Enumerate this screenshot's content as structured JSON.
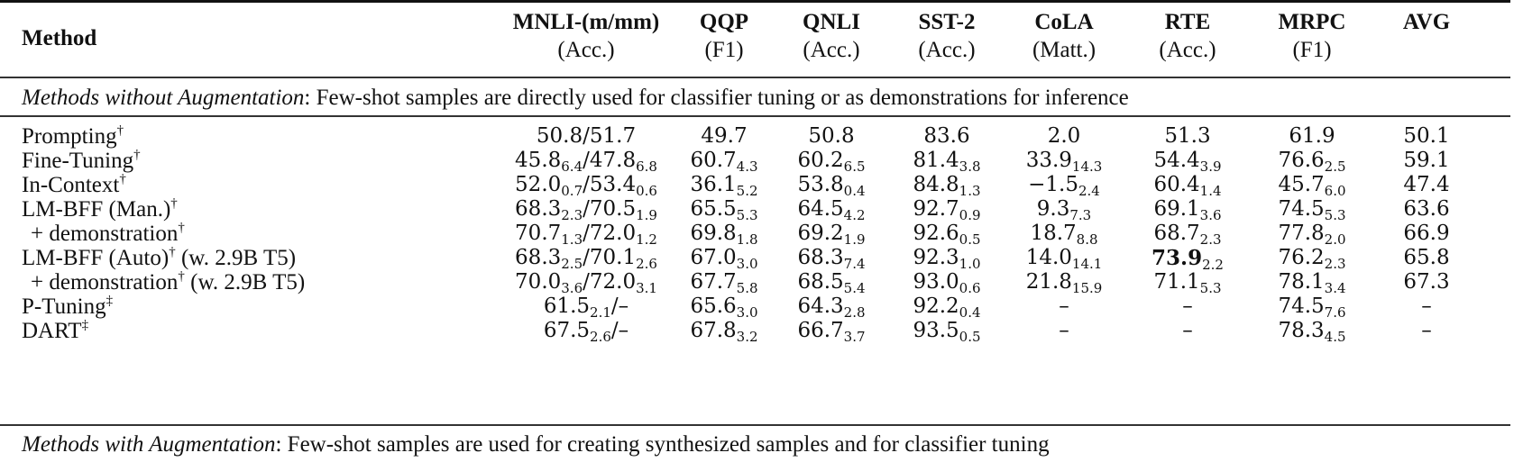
{
  "table": {
    "columns": [
      {
        "key": "method",
        "label": "Method",
        "sub": ""
      },
      {
        "key": "mnli",
        "label": "MNLI-(m/mm)",
        "sub": "(Acc.)"
      },
      {
        "key": "qqp",
        "label": "QQP",
        "sub": "(F1)"
      },
      {
        "key": "qnli",
        "label": "QNLI",
        "sub": "(Acc.)"
      },
      {
        "key": "sst2",
        "label": "SST-2",
        "sub": "(Acc.)"
      },
      {
        "key": "cola",
        "label": "CoLA",
        "sub": "(Matt.)"
      },
      {
        "key": "rte",
        "label": "RTE",
        "sub": "(Acc.)"
      },
      {
        "key": "mrpc",
        "label": "MRPC",
        "sub": "(F1)"
      },
      {
        "key": "avg",
        "label": "AVG",
        "sub": ""
      }
    ],
    "sections": [
      {
        "title_italic": "Methods without Augmentation",
        "title_rest": ": Few-shot samples are directly used for classifier tuning or as demonstrations for inference"
      },
      {
        "title_italic": "Methods with Augmentation",
        "title_rest": ": Few-shot samples are used for creating synthesized samples and for classifier tuning"
      }
    ],
    "rows": [
      {
        "name": "Prompting",
        "mark": "†",
        "suffix": "",
        "indent": false,
        "mnli": "50.8/51.7",
        "qqp": "49.7",
        "qnli": "50.8",
        "sst2": "83.6",
        "cola": "2.0",
        "rte": "51.3",
        "mrpc": "61.9",
        "avg": "50.1"
      },
      {
        "name": "Fine-Tuning",
        "mark": "†",
        "suffix": "",
        "indent": false,
        "mnli": "45.8_{6.4}/47.8_{6.8}",
        "qqp": "60.7_{4.3}",
        "qnli": "60.2_{6.5}",
        "sst2": "81.4_{3.8}",
        "cola": "33.9_{14.3}",
        "rte": "54.4_{3.9}",
        "mrpc": "76.6_{2.5}",
        "avg": "59.1"
      },
      {
        "name": "In-Context",
        "mark": "†",
        "suffix": "",
        "indent": false,
        "mnli": "52.0_{0.7}/53.4_{0.6}",
        "qqp": "36.1_{5.2}",
        "qnli": "53.8_{0.4}",
        "sst2": "84.8_{1.3}",
        "cola": "−1.5_{2.4}",
        "rte": "60.4_{1.4}",
        "mrpc": "45.7_{6.0}",
        "avg": "47.4"
      },
      {
        "name": "LM-BFF (Man.)",
        "mark": "†",
        "suffix": "",
        "indent": false,
        "mnli": "68.3_{2.3}/70.5_{1.9}",
        "qqp": "65.5_{5.3}",
        "qnli": "64.5_{4.2}",
        "sst2": "92.7_{0.9}",
        "cola": "9.3_{7.3}",
        "rte": "69.1_{3.6}",
        "mrpc": "74.5_{5.3}",
        "avg": "63.6"
      },
      {
        "name": "+ demonstration",
        "mark": "†",
        "suffix": "",
        "indent": true,
        "mnli": "70.7_{1.3}/72.0_{1.2}",
        "qqp": "69.8_{1.8}",
        "qnli": "69.2_{1.9}",
        "sst2": "92.6_{0.5}",
        "cola": "18.7_{8.8}",
        "rte": "68.7_{2.3}",
        "mrpc": "77.8_{2.0}",
        "avg": "66.9"
      },
      {
        "name": "LM-BFF (Auto)",
        "mark": "†",
        "suffix": " (w. 2.9B T5)",
        "indent": false,
        "mnli": "68.3_{2.5}/70.1_{2.6}",
        "qqp": "67.0_{3.0}",
        "qnli": "68.3_{7.4}",
        "sst2": "92.3_{1.0}",
        "cola": "14.0_{14.1}",
        "rte": "**73.9**_{2.2}",
        "mrpc": "76.2_{2.3}",
        "avg": "65.8"
      },
      {
        "name": "+ demonstration",
        "mark": "†",
        "suffix": " (w. 2.9B T5)",
        "indent": true,
        "mnli": "70.0_{3.6}/72.0_{3.1}",
        "qqp": "67.7_{5.8}",
        "qnli": "68.5_{5.4}",
        "sst2": "93.0_{0.6}",
        "cola": "21.8_{15.9}",
        "rte": "71.1_{5.3}",
        "mrpc": "78.1_{3.4}",
        "avg": "67.3"
      },
      {
        "name": "P-Tuning",
        "mark": "‡",
        "suffix": "",
        "indent": false,
        "mnli": "61.5_{2.1}/–",
        "qqp": "65.6_{3.0}",
        "qnli": "64.3_{2.8}",
        "sst2": "92.2_{0.4}",
        "cola": "–",
        "rte": "–",
        "mrpc": "74.5_{7.6}",
        "avg": "–"
      },
      {
        "name": "DART",
        "mark": "‡",
        "suffix": "",
        "indent": false,
        "mnli": "67.5_{2.6}/–",
        "qqp": "67.8_{3.2}",
        "qnli": "66.7_{3.7}",
        "sst2": "93.5_{0.5}",
        "cola": "–",
        "rte": "–",
        "mrpc": "78.3_{4.5}",
        "avg": "–"
      }
    ]
  },
  "layout": {
    "col_centers": {
      "mnli": 650,
      "qqp": 803,
      "qnli": 922,
      "sst2": 1050,
      "cola": 1180,
      "rte": 1317,
      "mrpc": 1455,
      "avg": 1582
    },
    "row_tops": [
      138,
      165,
      192,
      219,
      246,
      273,
      300,
      327,
      354,
      381,
      408,
      435
    ]
  }
}
